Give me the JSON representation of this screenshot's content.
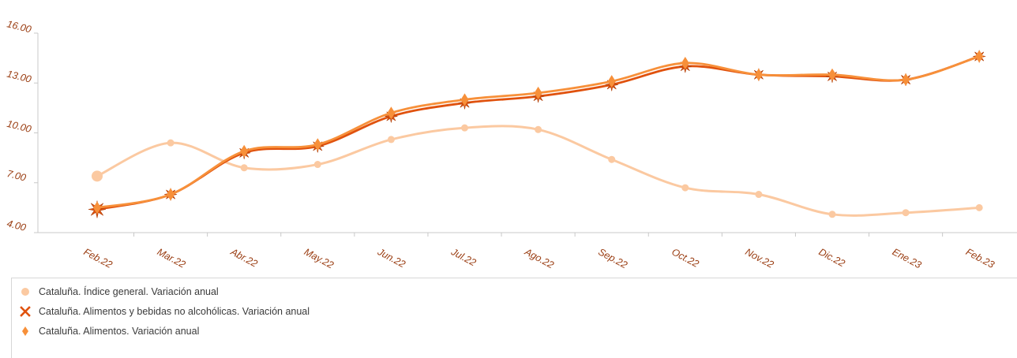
{
  "chart_data": {
    "type": "line",
    "title": "",
    "xlabel": "",
    "ylabel": "",
    "categories": [
      "Feb.22",
      "Mar.22",
      "Abr.22",
      "May.22",
      "Jun.22",
      "Jul.22",
      "Ago.22",
      "Sep.22",
      "Oct.22",
      "Nov.22",
      "Dic.22",
      "Ene.23",
      "Feb.23"
    ],
    "ylim": [
      4,
      16
    ],
    "yticks": [
      "4.00",
      "7.00",
      "10.00",
      "13.00",
      "16.00"
    ],
    "grid": false,
    "legend_position": "bottom",
    "series": [
      {
        "name": "Cataluña. Índice general. Variación anual",
        "marker": "circle",
        "color": "#fbc9a1",
        "values": [
          7.4,
          9.4,
          7.9,
          8.1,
          9.6,
          10.3,
          10.2,
          8.4,
          6.7,
          6.3,
          5.1,
          5.2,
          5.5
        ]
      },
      {
        "name": "Cataluña. Alimentos y bebidas no alcohólicas. Variación anual",
        "marker": "x",
        "color": "#e0520e",
        "values": [
          5.4,
          6.3,
          8.8,
          9.2,
          11.0,
          11.8,
          12.2,
          12.9,
          14.0,
          13.5,
          13.4,
          13.2,
          14.6
        ]
      },
      {
        "name": "Cataluña. Alimentos. Variación anual",
        "marker": "diamond",
        "color": "#f7903a",
        "values": [
          5.5,
          6.3,
          8.9,
          9.3,
          11.2,
          12.0,
          12.4,
          13.1,
          14.2,
          13.5,
          13.5,
          13.2,
          14.6
        ]
      }
    ]
  }
}
